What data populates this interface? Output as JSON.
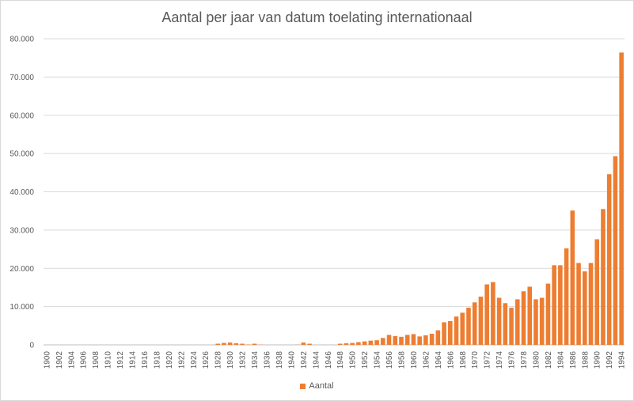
{
  "chart_data": {
    "type": "bar",
    "title": "Aantal per jaar van datum toelating internationaal",
    "xlabel": "",
    "ylabel": "",
    "ylim": [
      0,
      80000
    ],
    "y_ticks": [
      0,
      10000,
      20000,
      30000,
      40000,
      50000,
      60000,
      70000,
      80000
    ],
    "y_tick_labels": [
      "0",
      "10.000",
      "20.000",
      "30.000",
      "40.000",
      "50.000",
      "60.000",
      "70.000",
      "80.000"
    ],
    "grid": true,
    "legend_position": "bottom",
    "series_color": "#ED7D31",
    "categories": [
      "1900",
      "1901",
      "1902",
      "1903",
      "1904",
      "1905",
      "1906",
      "1907",
      "1908",
      "1909",
      "1910",
      "1911",
      "1912",
      "1913",
      "1914",
      "1915",
      "1916",
      "1917",
      "1918",
      "1919",
      "1920",
      "1921",
      "1922",
      "1923",
      "1924",
      "1925",
      "1926",
      "1927",
      "1928",
      "1929",
      "1930",
      "1931",
      "1932",
      "1933",
      "1934",
      "1935",
      "1936",
      "1937",
      "1938",
      "1939",
      "1940",
      "1941",
      "1942",
      "1943",
      "1944",
      "1945",
      "1946",
      "1947",
      "1948",
      "1949",
      "1950",
      "1951",
      "1952",
      "1953",
      "1954",
      "1955",
      "1956",
      "1957",
      "1958",
      "1959",
      "1960",
      "1961",
      "1962",
      "1963",
      "1964",
      "1965",
      "1966",
      "1967",
      "1968",
      "1969",
      "1970",
      "1971",
      "1972",
      "1973",
      "1974",
      "1975",
      "1976",
      "1977",
      "1978",
      "1979",
      "1980",
      "1981",
      "1982",
      "1983",
      "1984",
      "1985",
      "1986",
      "1987",
      "1988",
      "1989",
      "1990",
      "1991",
      "1992",
      "1993",
      "1994"
    ],
    "series": [
      {
        "name": "Aantal",
        "values": [
          0,
          0,
          0,
          0,
          0,
          0,
          0,
          0,
          0,
          0,
          0,
          0,
          0,
          0,
          0,
          0,
          0,
          0,
          0,
          0,
          0,
          0,
          0,
          0,
          0,
          0,
          0,
          0,
          300,
          500,
          600,
          400,
          300,
          100,
          300,
          50,
          0,
          0,
          0,
          0,
          0,
          50,
          600,
          300,
          0,
          0,
          0,
          0,
          300,
          400,
          500,
          700,
          900,
          1100,
          1200,
          1800,
          2600,
          2300,
          2100,
          2600,
          2800,
          2200,
          2500,
          2900,
          3800,
          5900,
          6200,
          7400,
          8400,
          9700,
          11100,
          12600,
          15800,
          16400,
          12300,
          10900,
          9700,
          11900,
          14000,
          15200,
          11900,
          12300,
          16000,
          20800,
          20800,
          25200,
          35100,
          21400,
          19200,
          21400,
          27600,
          35500,
          44600,
          49300,
          76400
        ]
      }
    ]
  }
}
